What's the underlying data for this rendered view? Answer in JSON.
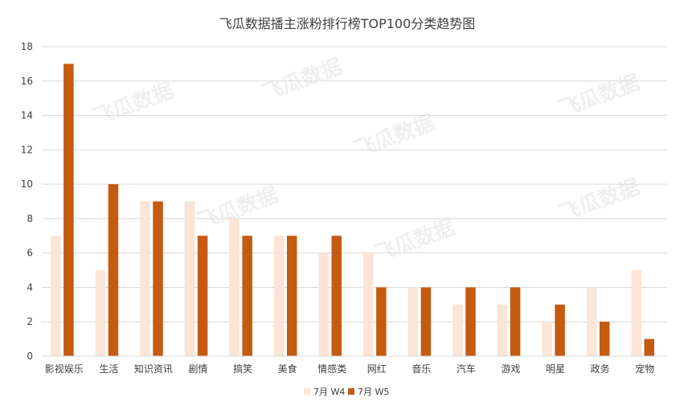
{
  "chart_data": {
    "type": "bar",
    "title": "飞瓜数据播主涨粉排行榜TOP100分类趋势图",
    "categories": [
      "影视娱乐",
      "生活",
      "知识资讯",
      "剧情",
      "搞笑",
      "美食",
      "情感类",
      "网红",
      "音乐",
      "汽车",
      "游戏",
      "明星",
      "政务",
      "宠物"
    ],
    "series": [
      {
        "name": "7月 W4",
        "color": "#fbe5d6",
        "values": [
          7,
          5,
          9,
          9,
          8,
          7,
          6,
          6,
          4,
          3,
          3,
          2,
          4,
          5
        ]
      },
      {
        "name": "7月 W5",
        "color": "#c55a11",
        "values": [
          17,
          10,
          9,
          7,
          7,
          7,
          7,
          4,
          4,
          4,
          4,
          3,
          2,
          1
        ]
      }
    ],
    "ylim": [
      0,
      18
    ],
    "yticks": [
      0,
      2,
      4,
      6,
      8,
      10,
      12,
      14,
      16,
      18
    ],
    "grid": true,
    "legend_position": "bottom",
    "watermark": "飞瓜数据"
  }
}
